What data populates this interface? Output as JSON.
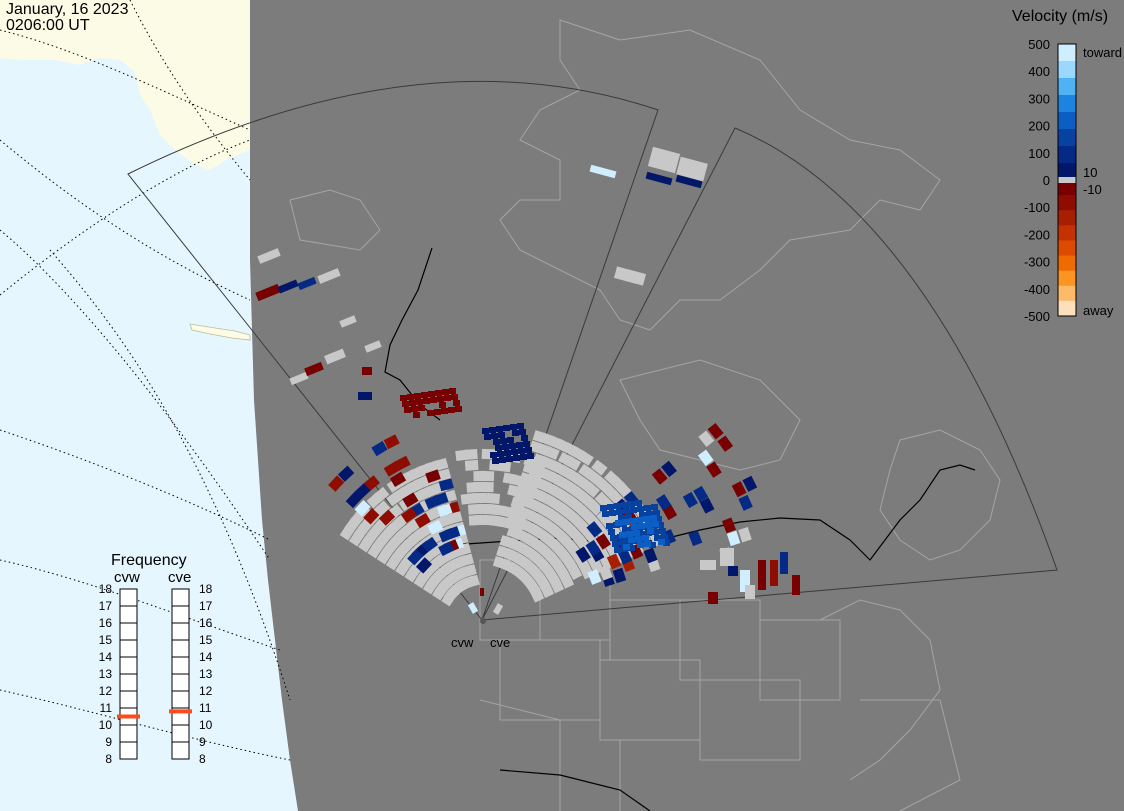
{
  "header": {
    "date": "January, 16 2023",
    "time": "0206:00 UT"
  },
  "radars": [
    {
      "name": "cvw",
      "label": "cvw"
    },
    {
      "name": "cve",
      "label": "cve"
    }
  ],
  "colorbar": {
    "title": "Velocity (m/s)",
    "ticks": [
      "500",
      "400",
      "300",
      "200",
      "100",
      "0",
      "-100",
      "-200",
      "-300",
      "-400",
      "-500"
    ],
    "toward_label": "toward",
    "away_label": "away",
    "plus_threshold": "10",
    "minus_threshold": "-10",
    "colors_toward": [
      "#cfeeff",
      "#9ad8ff",
      "#4fb2f5",
      "#1c84e0",
      "#0b5fc4",
      "#0842a0",
      "#052a85",
      "#02176a"
    ],
    "colors_away": [
      "#780000",
      "#8e0d00",
      "#a81e00",
      "#c33200",
      "#dd4a00",
      "#ef6a00",
      "#fb9420",
      "#fdbb6a",
      "#fde0bb"
    ],
    "ground_scatter_color": "#c8c8c8"
  },
  "frequency": {
    "title": "Frequency",
    "ticks": [
      "18",
      "17",
      "16",
      "15",
      "14",
      "13",
      "12",
      "11",
      "10",
      "9",
      "8"
    ],
    "cvw_label": "cvw",
    "cve_label": "cve",
    "cvw_value_mhz": 10.5,
    "cve_value_mhz": 10.8,
    "indicator_color": "#ff4a1c"
  },
  "map": {
    "ocean_color": "#e6f6ff",
    "land_dark_color": "#7c7c7c",
    "land_sunlit_color": "#fbfbe6",
    "border_color": "#a5a5a5"
  }
}
